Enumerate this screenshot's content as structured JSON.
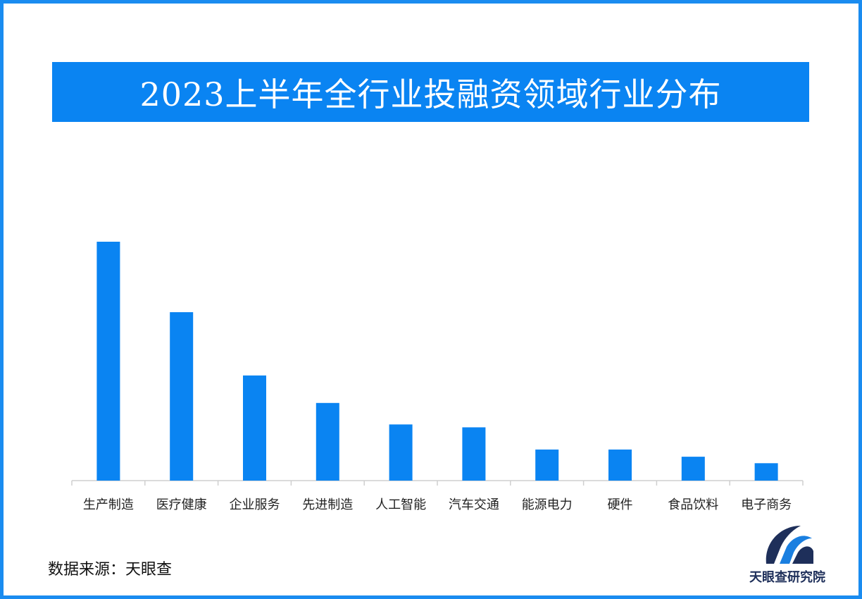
{
  "title": "2023上半年全行业投融资领域行业分布",
  "source_text": "数据来源：天眼查",
  "logo": {
    "icon": "tianyancha-logo-icon",
    "text": "天眼查研究院"
  },
  "colors": {
    "frame": "#1a8cf0",
    "banner": "#0a84f2",
    "bar": "#0a84f2",
    "axis": "#cfcfcf",
    "logo_dark": "#1e2f5a",
    "logo_blue": "#1a7fe0"
  },
  "chart_data": {
    "type": "bar",
    "title": "2023上半年全行业投融资领域行业分布",
    "categories": [
      "生产制造",
      "医疗健康",
      "企业服务",
      "先进制造",
      "人工智能",
      "汽车交通",
      "能源电力",
      "硬件",
      "食品饮料",
      "电子商务"
    ],
    "values": [
      100,
      70.5,
      44,
      32.5,
      23.5,
      22.3,
      13,
      13,
      10,
      7.3
    ],
    "ylim": [
      0,
      100
    ],
    "xlabel": "",
    "ylabel": "",
    "grid": false,
    "legend": "none"
  }
}
